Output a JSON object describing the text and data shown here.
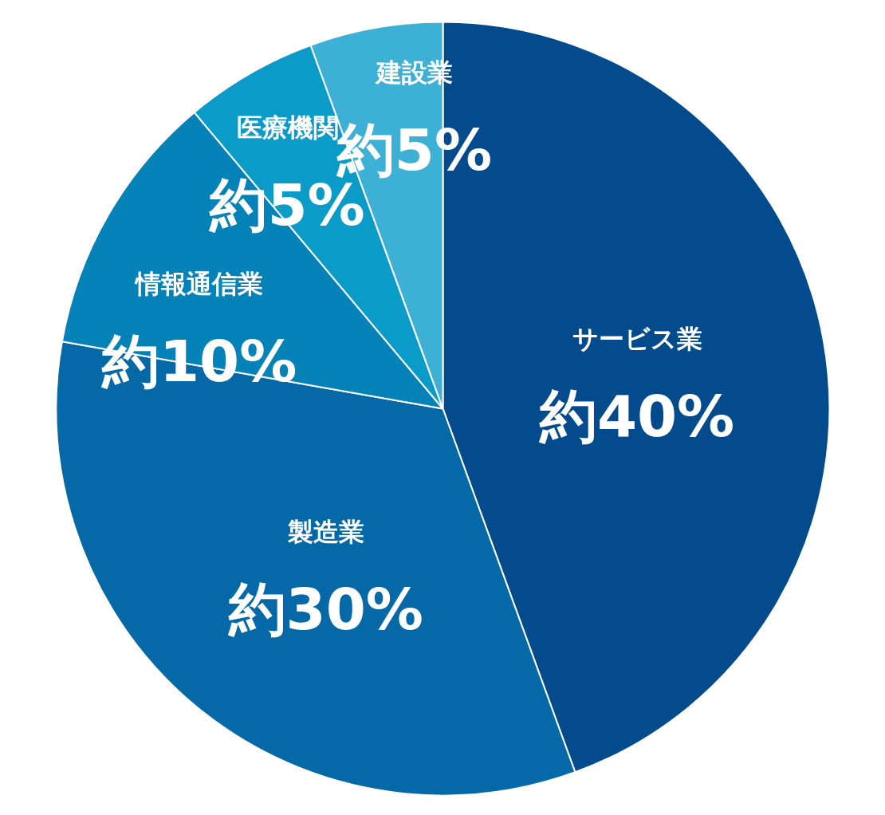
{
  "chart_data": {
    "type": "pie",
    "categories": [
      "サービス業",
      "製造業",
      "情報通信業",
      "医療機関",
      "建設業"
    ],
    "values": [
      40,
      30,
      10,
      5,
      5
    ],
    "colors": [
      "#034b8c",
      "#0569a8",
      "#0582b7",
      "#0a9bc8",
      "#3db0d6"
    ],
    "value_labels": [
      "約40%",
      "約30%",
      "約10%",
      "約5%",
      "約5%"
    ]
  }
}
